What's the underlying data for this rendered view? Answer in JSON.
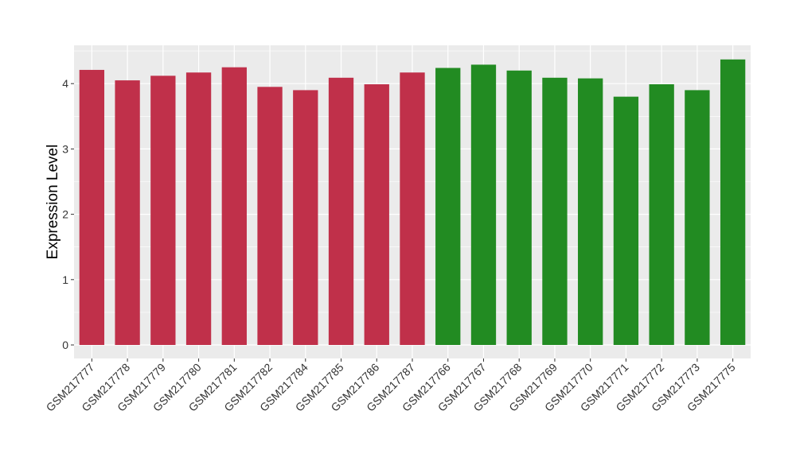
{
  "chart_data": {
    "type": "bar",
    "title": "",
    "xlabel": "",
    "ylabel": "Expression Level",
    "ylim": [
      0,
      4.5
    ],
    "yticks": [
      "0",
      "1",
      "2",
      "3",
      "4"
    ],
    "grid": true,
    "categories": [
      "GSM217777",
      "GSM217778",
      "GSM217779",
      "GSM217780",
      "GSM217781",
      "GSM217782",
      "GSM217784",
      "GSM217785",
      "GSM217786",
      "GSM217787",
      "GSM217766",
      "GSM217767",
      "GSM217768",
      "GSM217769",
      "GSM217770",
      "GSM217771",
      "GSM217772",
      "GSM217773",
      "GSM217775"
    ],
    "values": [
      4.21,
      4.05,
      4.12,
      4.17,
      4.25,
      3.95,
      3.9,
      4.09,
      3.99,
      4.17,
      4.24,
      4.29,
      4.2,
      4.09,
      4.08,
      3.8,
      3.99,
      3.9,
      4.37
    ],
    "bar_colors": [
      "#c0304a",
      "#c0304a",
      "#c0304a",
      "#c0304a",
      "#c0304a",
      "#c0304a",
      "#c0304a",
      "#c0304a",
      "#c0304a",
      "#c0304a",
      "#228b22",
      "#228b22",
      "#228b22",
      "#228b22",
      "#228b22",
      "#228b22",
      "#228b22",
      "#228b22",
      "#228b22"
    ],
    "panel_color": "#ebebeb",
    "grid_color": "#ffffff"
  }
}
